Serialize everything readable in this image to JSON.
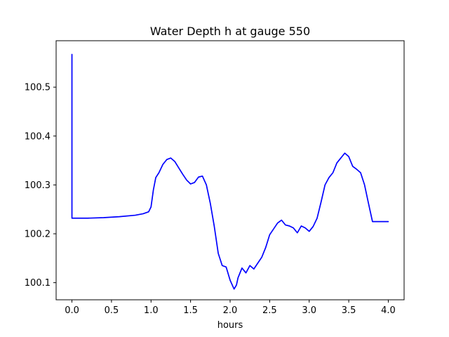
{
  "chart_data": {
    "type": "line",
    "title": "Water Depth h at gauge 550",
    "xlabel": "hours",
    "ylabel": "",
    "xlim": [
      -0.2,
      4.2
    ],
    "ylim": [
      100.065,
      100.595
    ],
    "grid": false,
    "x_ticks": [
      "0.0",
      "0.5",
      "1.0",
      "1.5",
      "2.0",
      "2.5",
      "3.0",
      "3.5",
      "4.0"
    ],
    "y_ticks": [
      "100.1",
      "100.2",
      "100.3",
      "100.4",
      "100.5"
    ],
    "series": [
      {
        "color": "#0000ff",
        "x": [
          0.0,
          0.0,
          0.01,
          0.2,
          0.4,
          0.6,
          0.8,
          0.9,
          0.97,
          1.0,
          1.03,
          1.06,
          1.1,
          1.15,
          1.2,
          1.25,
          1.3,
          1.35,
          1.4,
          1.45,
          1.5,
          1.55,
          1.6,
          1.65,
          1.7,
          1.75,
          1.8,
          1.85,
          1.9,
          1.95,
          2.0,
          2.05,
          2.08,
          2.1,
          2.15,
          2.2,
          2.25,
          2.3,
          2.35,
          2.4,
          2.45,
          2.5,
          2.55,
          2.6,
          2.65,
          2.7,
          2.75,
          2.8,
          2.85,
          2.9,
          2.95,
          3.0,
          3.05,
          3.1,
          3.15,
          3.2,
          3.25,
          3.3,
          3.35,
          3.4,
          3.45,
          3.5,
          3.55,
          3.6,
          3.65,
          3.7,
          3.75,
          3.8,
          3.85,
          3.9,
          3.95,
          4.0
        ],
        "y": [
          100.567,
          100.232,
          100.232,
          100.232,
          100.233,
          100.235,
          100.238,
          100.241,
          100.245,
          100.255,
          100.29,
          100.315,
          100.325,
          100.342,
          100.352,
          100.355,
          100.348,
          100.335,
          100.322,
          100.31,
          100.302,
          100.305,
          100.316,
          100.318,
          100.3,
          100.262,
          100.215,
          100.16,
          100.135,
          100.132,
          100.105,
          100.087,
          100.095,
          100.11,
          100.13,
          100.12,
          100.135,
          100.128,
          100.14,
          100.152,
          100.172,
          100.198,
          100.21,
          100.222,
          100.228,
          100.218,
          100.216,
          100.212,
          100.202,
          100.216,
          100.212,
          100.205,
          100.215,
          100.232,
          100.265,
          100.3,
          100.315,
          100.325,
          100.345,
          100.355,
          100.365,
          100.358,
          100.338,
          100.332,
          100.325,
          100.3,
          100.262,
          100.225,
          100.225,
          100.225,
          100.225,
          100.225
        ]
      }
    ]
  }
}
